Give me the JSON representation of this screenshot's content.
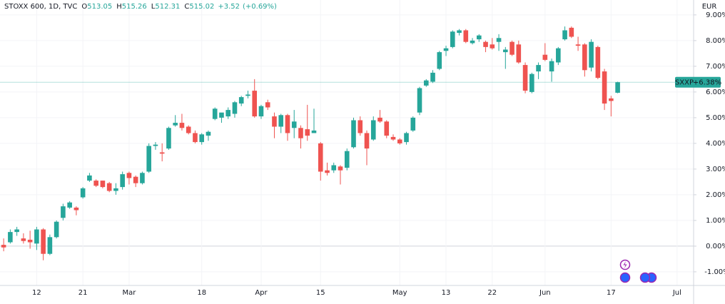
{
  "chart_data": {
    "type": "candlestick",
    "title": "STOXX 600, 1D, TVC",
    "ohlc_header": [
      {
        "label": "O",
        "value": 513.05
      },
      {
        "label": "H",
        "value": 515.26
      },
      {
        "label": "L",
        "value": 512.31
      },
      {
        "label": "C",
        "value": 515.02
      }
    ],
    "change": "+3.52",
    "change_pct": "(+0.69%)",
    "currency": "EUR",
    "price_label": {
      "symbol": "SXXP",
      "value": 6.38,
      "label": "+6.38%"
    },
    "up_color": "#26a69a",
    "down_color": "#ef5350",
    "grid": true,
    "categories": [
      null,
      null,
      null,
      null,
      null,
      "12",
      null,
      null,
      null,
      null,
      null,
      null,
      "21",
      null,
      null,
      null,
      null,
      null,
      null,
      "Mar",
      null,
      null,
      null,
      null,
      null,
      null,
      null,
      null,
      null,
      null,
      "18",
      null,
      null,
      null,
      null,
      null,
      null,
      null,
      null,
      "Apr",
      null,
      null,
      null,
      null,
      null,
      null,
      null,
      null,
      "15",
      null,
      null,
      null,
      null,
      null,
      null,
      null,
      null,
      null,
      null,
      null,
      "May",
      null,
      null,
      null,
      null,
      null,
      null,
      "13",
      null,
      null,
      null,
      null,
      null,
      null,
      "22",
      null,
      null,
      null,
      null,
      null,
      null,
      null,
      "Jun",
      null,
      null,
      null,
      null,
      null,
      null,
      null,
      null,
      null,
      "17",
      null,
      null,
      null,
      null,
      null,
      null,
      null,
      null,
      null,
      "Jul",
      null,
      null
    ],
    "open": [
      0.05,
      0.15,
      0.55,
      0.3,
      0.25,
      0.1,
      0.65,
      -0.3,
      0.35,
      1.1,
      1.5,
      1.5,
      1.9,
      2.55,
      2.55,
      2.55,
      2.45,
      2.15,
      2.3,
      2.85,
      2.7,
      2.45,
      2.9,
      3.9,
      3.65,
      3.8,
      4.7,
      4.8,
      4.65,
      4.4,
      4.05,
      4.3,
      4.95,
      5.0,
      5.05,
      5.15,
      5.55,
      5.85,
      6.05,
      5.05,
      5.6,
      5.05,
      4.65,
      5.1,
      4.6,
      4.6,
      4.55,
      4.4,
      4.0,
      2.95,
      2.95,
      3.1,
      3.05,
      3.85,
      4.9,
      4.4,
      4.15,
      5.0,
      4.85,
      4.25,
      4.15,
      4.05,
      4.5,
      5.2,
      6.25,
      6.4,
      6.9,
      7.6,
      7.75,
      8.3,
      8.4,
      7.9,
      8.05,
      7.95,
      7.85,
      7.95,
      7.55,
      7.95,
      7.85,
      7.05,
      6.0,
      6.8,
      7.45,
      6.8,
      7.15,
      8.05,
      8.5,
      7.85,
      7.85,
      6.95,
      7.75,
      6.8,
      5.75,
      5.97,
      null,
      null,
      null,
      null,
      null,
      null,
      null,
      null,
      null,
      null,
      null
    ],
    "high": [
      0.3,
      0.65,
      0.75,
      0.5,
      0.6,
      0.75,
      0.7,
      0.45,
      1.0,
      1.65,
      1.75,
      1.55,
      2.3,
      2.85,
      2.6,
      2.55,
      2.5,
      2.45,
      2.9,
      2.9,
      2.75,
      2.9,
      4.0,
      4.05,
      4.0,
      4.65,
      5.1,
      5.15,
      4.7,
      4.5,
      4.4,
      4.5,
      5.4,
      5.15,
      5.4,
      5.65,
      5.85,
      6.05,
      6.5,
      5.5,
      5.7,
      5.2,
      5.15,
      5.15,
      5.3,
      4.7,
      5.5,
      5.35,
      4.05,
      3.25,
      3.25,
      3.15,
      3.8,
      5.0,
      5.05,
      4.5,
      5.05,
      5.3,
      4.9,
      4.35,
      4.2,
      4.45,
      5.05,
      6.2,
      6.5,
      6.85,
      7.6,
      7.8,
      8.4,
      8.45,
      8.45,
      8.1,
      8.25,
      8.0,
      8.1,
      8.25,
      7.75,
      8.0,
      8.0,
      7.15,
      6.75,
      7.15,
      7.9,
      7.3,
      7.75,
      8.55,
      8.55,
      8.15,
      7.9,
      8.05,
      7.8,
      6.9,
      5.85,
      6.4,
      null,
      null,
      null,
      null,
      null,
      null,
      null,
      null,
      null,
      null,
      null
    ],
    "low": [
      -0.2,
      0.1,
      0.4,
      0.1,
      -0.1,
      -0.15,
      -0.55,
      -0.35,
      0.3,
      1.0,
      1.45,
      1.2,
      1.85,
      2.5,
      2.3,
      2.25,
      2.1,
      2.0,
      2.2,
      2.4,
      2.3,
      2.4,
      2.85,
      3.75,
      3.3,
      3.75,
      4.65,
      4.5,
      4.35,
      4.0,
      3.95,
      4.1,
      4.9,
      4.8,
      4.95,
      5.0,
      5.45,
      5.75,
      5.0,
      4.95,
      5.3,
      4.2,
      4.4,
      4.1,
      4.2,
      3.8,
      4.1,
      4.4,
      2.55,
      2.75,
      2.85,
      2.4,
      2.95,
      3.8,
      4.3,
      3.15,
      4.1,
      4.8,
      4.2,
      4.1,
      3.95,
      3.95,
      4.45,
      5.1,
      6.2,
      6.35,
      6.85,
      7.4,
      7.7,
      8.2,
      7.9,
      7.85,
      7.95,
      7.55,
      7.65,
      7.6,
      6.9,
      7.4,
      7.1,
      5.95,
      5.95,
      6.5,
      7.2,
      6.4,
      7.05,
      8.0,
      8.1,
      7.6,
      6.6,
      6.8,
      6.5,
      5.3,
      5.05,
      5.95,
      null,
      null,
      null,
      null,
      null,
      null,
      null,
      null,
      null,
      null,
      null
    ],
    "close": [
      -0.05,
      0.55,
      0.65,
      0.2,
      0.15,
      0.65,
      -0.3,
      0.35,
      0.95,
      1.55,
      1.7,
      1.4,
      2.25,
      2.75,
      2.35,
      2.3,
      2.15,
      2.25,
      2.8,
      2.65,
      2.45,
      2.85,
      3.9,
      3.95,
      3.6,
      4.6,
      4.8,
      4.6,
      4.4,
      4.05,
      4.35,
      4.45,
      5.35,
      5.2,
      5.3,
      5.6,
      5.8,
      5.9,
      5.05,
      5.45,
      5.4,
      4.65,
      5.1,
      4.4,
      4.85,
      4.2,
      4.3,
      4.5,
      2.9,
      2.85,
      3.15,
      2.95,
      3.7,
      4.9,
      4.4,
      3.8,
      4.9,
      4.85,
      4.3,
      4.15,
      4.0,
      4.4,
      5.0,
      6.15,
      6.45,
      6.75,
      7.55,
      7.7,
      8.35,
      8.4,
      7.95,
      8.0,
      8.2,
      7.75,
      7.7,
      8.1,
      7.65,
      7.45,
      7.15,
      6.05,
      6.7,
      7.05,
      7.25,
      7.2,
      7.7,
      8.4,
      8.15,
      7.8,
      6.85,
      7.95,
      6.55,
      5.55,
      5.65,
      6.38,
      null,
      null,
      null,
      null,
      null,
      null,
      null,
      null,
      null,
      null,
      null
    ],
    "ylim": [
      -1.53,
      9.58
    ],
    "yticks": [
      {
        "value": 9,
        "label": "9.00%"
      },
      {
        "value": 8,
        "label": "8.00%"
      },
      {
        "value": 7,
        "label": "7.00%"
      },
      {
        "value": 6,
        "label": "6.00%"
      },
      {
        "value": 5,
        "label": "5.00%"
      },
      {
        "value": 4,
        "label": "4.00%"
      },
      {
        "value": 3,
        "label": "3.00%"
      },
      {
        "value": 2,
        "label": "2.00%"
      },
      {
        "value": 1,
        "label": "1.00%"
      },
      {
        "value": 0,
        "label": "0.00%"
      },
      {
        "value": -1,
        "label": "-1.00%"
      }
    ]
  }
}
